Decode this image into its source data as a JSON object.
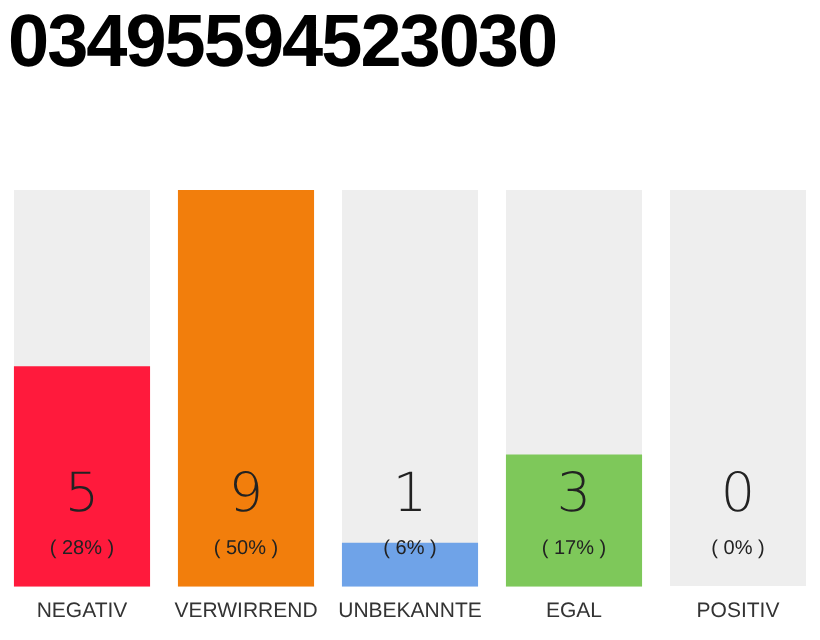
{
  "chart_data": {
    "type": "bar",
    "title": "03495594523030",
    "categories": [
      "NEGATIV",
      "VERWIRREND",
      "UNBEKANNTE",
      "EGAL",
      "POSITIV"
    ],
    "values": [
      5,
      9,
      1,
      3,
      0
    ],
    "colors": [
      "#ff1a3c",
      "#f27e0c",
      "#6fa3e8",
      "#7ec85a",
      "#cccccc"
    ],
    "ylim": [
      0,
      9
    ],
    "tick_labels": "x",
    "grid": false,
    "legend": false,
    "data_labels": true,
    "annotations": [
      "( 28% )",
      "( 50% )",
      "( 6% )",
      "( 17% )",
      "( 0% )"
    ]
  }
}
